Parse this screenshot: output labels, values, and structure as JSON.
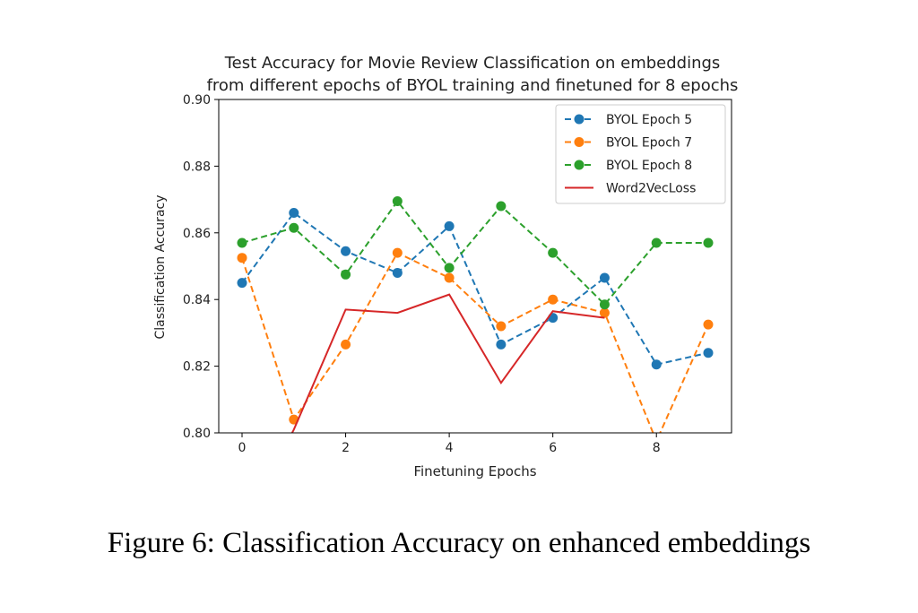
{
  "chart_data": {
    "type": "line",
    "title": [
      "Test Accuracy for Movie Review Classification on embeddings",
      "from different epochs of BYOL training and finetuned for 8 epochs"
    ],
    "xlabel": "Finetuning Epochs",
    "ylabel": "Classification Accuracy",
    "xlim": [
      -0.45,
      9.45
    ],
    "ylim": [
      0.8,
      0.9
    ],
    "xticks": [
      0,
      2,
      4,
      6,
      8
    ],
    "yticks": [
      0.8,
      0.82,
      0.84,
      0.86,
      0.88,
      0.9
    ],
    "grid": false,
    "legend_position": "top-right",
    "x": [
      0,
      1,
      2,
      3,
      4,
      5,
      6,
      7,
      8,
      9
    ],
    "series": [
      {
        "name": "BYOL Epoch 5",
        "color": "#1f77b4",
        "style": "dashed",
        "markers": true,
        "values": [
          0.845,
          0.866,
          0.8545,
          0.848,
          0.862,
          0.8265,
          0.8345,
          0.8465,
          0.8205,
          0.824
        ]
      },
      {
        "name": "BYOL Epoch 7",
        "color": "#ff7f0e",
        "style": "dashed",
        "markers": true,
        "values": [
          0.8525,
          0.804,
          0.8265,
          0.854,
          0.8465,
          0.832,
          0.84,
          0.836,
          0.7975,
          0.8325
        ]
      },
      {
        "name": "BYOL Epoch 8",
        "color": "#2ca02c",
        "style": "dashed",
        "markers": true,
        "values": [
          0.857,
          0.8615,
          0.8475,
          0.8695,
          0.8495,
          0.868,
          0.854,
          0.8385,
          0.857,
          0.857
        ]
      },
      {
        "name": "Word2VecLoss",
        "color": "#d62728",
        "style": "solid",
        "markers": false,
        "x": [
          0.9,
          1,
          2,
          3,
          4,
          5,
          6,
          7
        ],
        "values": [
          0.798,
          0.801,
          0.837,
          0.836,
          0.8415,
          0.815,
          0.8365,
          0.8345
        ]
      }
    ]
  },
  "caption": "Figure 6: Classification Accuracy on enhanced embeddings"
}
